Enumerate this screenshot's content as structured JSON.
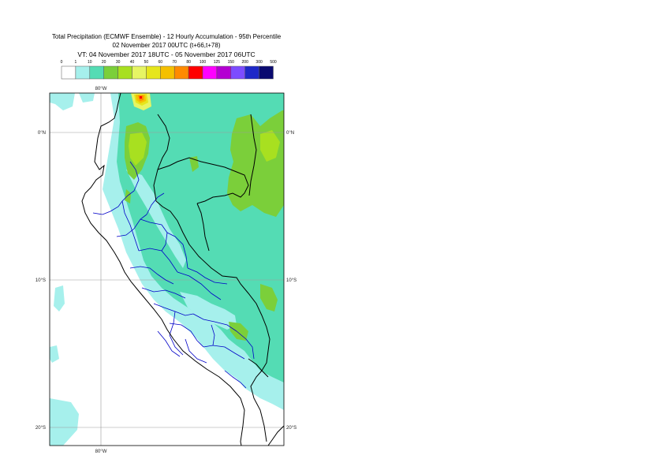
{
  "title": {
    "line1": "Total Precipitation (ECMWF Ensemble) - 12 Hourly Accumulation - 95th Percentile",
    "line2": "02 November 2017 00UTC (t+66,t+78)",
    "line3": "VT: 04 November 2017 18UTC - 05 November 2017 06UTC"
  },
  "legend": {
    "thresholds": [
      "0",
      "1",
      "10",
      "20",
      "30",
      "40",
      "50",
      "60",
      "70",
      "80",
      "100",
      "125",
      "150",
      "200",
      "300",
      "500"
    ],
    "colors": [
      "#ffffff",
      "#a6f0ec",
      "#54dcb4",
      "#7bcf3a",
      "#a8e020",
      "#e6f564",
      "#e6e61c",
      "#f5c000",
      "#ff8a00",
      "#ff0000",
      "#ff00ff",
      "#b400d2",
      "#7c4cff",
      "#1e28c8",
      "#0a0a70"
    ]
  },
  "axis_labels": {
    "lon_top": "80°W",
    "lon_bottom": "80°W",
    "lat_0_left": "0°N",
    "lat_0_right": "0°N",
    "lat_10_left": "10°S",
    "lat_10_right": "10°S",
    "lat_20_left": "20°S",
    "lat_20_right": "20°S"
  },
  "map": {
    "gridlines": true,
    "coast_color": "#000000",
    "border_color": "#000000",
    "admin_color": "#0000c8"
  }
}
